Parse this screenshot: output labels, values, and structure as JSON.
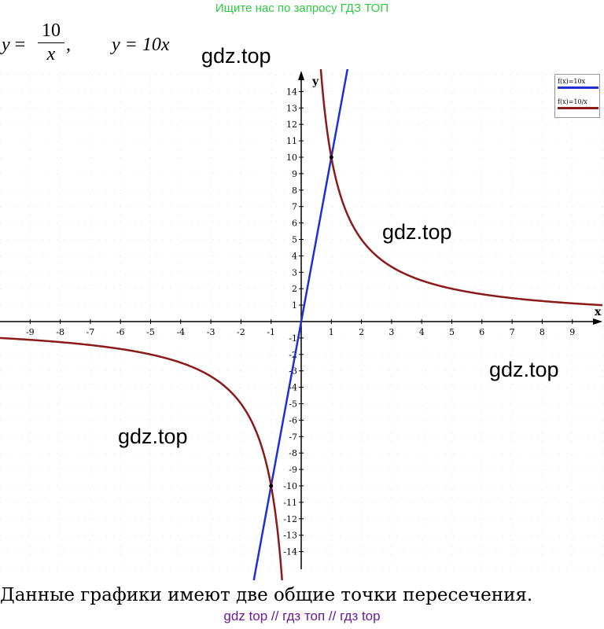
{
  "banner": "Ищите нас по запросу ГДЗ ТОП",
  "equation": {
    "y": "y",
    "eq": "=",
    "num": "10",
    "den": "x",
    "comma": ",",
    "second": "y = 10x"
  },
  "watermarks": [
    "gdz.top",
    "gdz.top",
    "gdz.top",
    "gdz.top"
  ],
  "legend": {
    "items": [
      {
        "label": "f(x)=10x",
        "color": "#1f2fd6"
      },
      {
        "label": "f(x)=10/x",
        "color": "#8b1a1a"
      }
    ]
  },
  "caption": "Данные графики имеют две общие точки пересечения.",
  "footer": "gdz top  //  гдз топ  //  гдз top",
  "chart_data": {
    "type": "line",
    "xlabel": "x",
    "ylabel": "y",
    "xlim": [
      -10,
      10
    ],
    "ylim": [
      -15,
      15
    ],
    "x_ticks": [
      -9,
      -8,
      -7,
      -6,
      -5,
      -4,
      -3,
      -2,
      -1,
      1,
      2,
      3,
      4,
      5,
      6,
      7,
      8,
      9
    ],
    "y_ticks": [
      -14,
      -13,
      -12,
      -11,
      -10,
      -9,
      -8,
      -7,
      -6,
      -5,
      -4,
      -3,
      -2,
      -1,
      1,
      2,
      3,
      4,
      5,
      6,
      7,
      8,
      9,
      10,
      11,
      12,
      13,
      14
    ],
    "grid": true,
    "legend_position": "top-right",
    "series": [
      {
        "name": "f(x)=10x",
        "formula": "10x",
        "color": "#1f2fd6"
      },
      {
        "name": "f(x)=10/x",
        "formula": "10/x",
        "color": "#8b1a1a"
      }
    ],
    "intersections": [
      [
        1,
        10
      ],
      [
        -1,
        -10
      ]
    ]
  }
}
